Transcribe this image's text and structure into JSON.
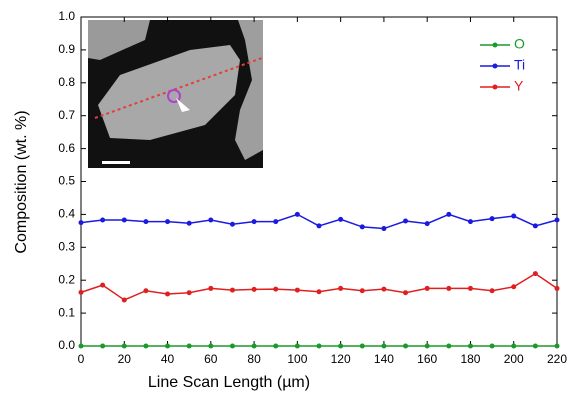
{
  "chart_data": {
    "type": "line",
    "x_label": "Line Scan Length (µm)",
    "y_label": "Composition (wt. %)",
    "x": [
      0,
      10,
      20,
      30,
      40,
      50,
      60,
      70,
      80,
      90,
      100,
      110,
      120,
      130,
      140,
      150,
      160,
      170,
      180,
      190,
      200,
      210,
      220
    ],
    "series": [
      {
        "name": "O",
        "color": "#1a9a2a",
        "values": [
          0,
          0,
          0,
          0,
          0,
          0,
          0,
          0,
          0,
          0,
          0,
          0,
          0,
          0,
          0,
          0,
          0,
          0,
          0,
          0,
          0,
          0,
          0
        ]
      },
      {
        "name": "Ti",
        "color": "#1a1ae0",
        "values": [
          0.375,
          0.383,
          0.383,
          0.378,
          0.378,
          0.373,
          0.383,
          0.37,
          0.378,
          0.378,
          0.4,
          0.365,
          0.385,
          0.362,
          0.357,
          0.38,
          0.372,
          0.4,
          0.378,
          0.387,
          0.395,
          0.365,
          0.383
        ]
      },
      {
        "name": "Y",
        "color": "#e02020",
        "values": [
          0.163,
          0.185,
          0.14,
          0.168,
          0.158,
          0.162,
          0.175,
          0.17,
          0.172,
          0.173,
          0.17,
          0.165,
          0.175,
          0.168,
          0.173,
          0.162,
          0.175,
          0.175,
          0.175,
          0.168,
          0.18,
          0.22,
          0.175
        ]
      }
    ],
    "xlim": [
      0,
      220
    ],
    "xticks": [
      0,
      20,
      40,
      60,
      80,
      100,
      120,
      140,
      160,
      180,
      200,
      220
    ],
    "ylim": [
      0,
      1
    ],
    "yticks": [
      {
        "value": 0,
        "label": "0.0"
      },
      0.1,
      0.2,
      0.3,
      0.4,
      0.5,
      0.6,
      0.7,
      0.8,
      0.9,
      {
        "value": 1,
        "label": "1.0"
      }
    ],
    "legend": "upper right"
  }
}
